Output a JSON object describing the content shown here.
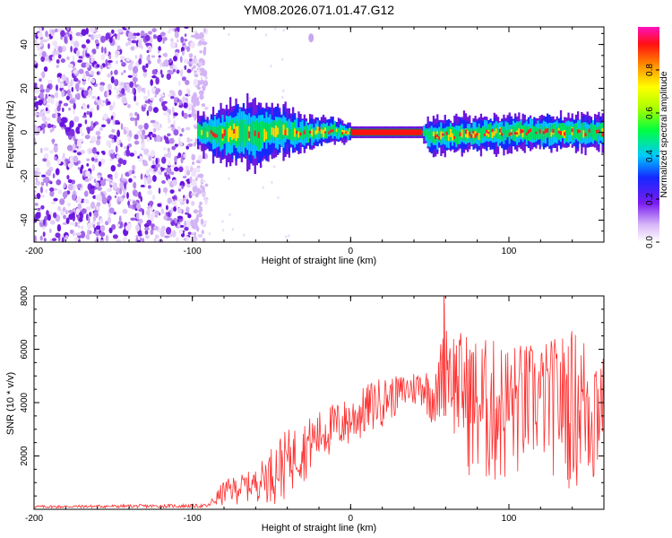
{
  "title": "YM08.2026.071.01.47.G12",
  "chart_data": [
    {
      "type": "heatmap",
      "xlabel": "Height of straight line (km)",
      "ylabel": "Frequency (Hz)",
      "xlim": [
        -200,
        160
      ],
      "ylim": [
        -50,
        48
      ],
      "x_ticks": [
        -200,
        -100,
        0,
        100
      ],
      "x_tick_labels": [
        "-200",
        "-100",
        "0",
        "100"
      ],
      "y_ticks": [
        -40,
        -20,
        0,
        20,
        40
      ],
      "y_tick_labels": [
        "-40",
        "-20",
        "0",
        "20",
        "40"
      ],
      "noise_region_x": [
        -200,
        -97
      ],
      "signal_band": [
        {
          "x": -97,
          "center": 0,
          "width": 5
        },
        {
          "x": -80,
          "center": -1,
          "width": 8
        },
        {
          "x": -70,
          "center": 0,
          "width": 10
        },
        {
          "x": -60,
          "center": -1,
          "width": 9
        },
        {
          "x": -45,
          "center": 1,
          "width": 7
        },
        {
          "x": -30,
          "center": -1,
          "width": 5
        },
        {
          "x": -15,
          "center": 1,
          "width": 4
        },
        {
          "x": 0,
          "center": 0,
          "width": 2
        },
        {
          "x": 45,
          "center": 0,
          "width": 2
        },
        {
          "x": 50,
          "center": -2,
          "width": 5
        },
        {
          "x": 70,
          "center": -1,
          "width": 5
        },
        {
          "x": 100,
          "center": 0,
          "width": 5
        },
        {
          "x": 130,
          "center": 0,
          "width": 5
        },
        {
          "x": 160,
          "center": 0,
          "width": 5
        }
      ],
      "colorbar": {
        "label": "Normalized spectral amplitude",
        "range": [
          0,
          1
        ],
        "ticks": [
          0.0,
          0.2,
          0.4,
          0.6,
          0.8
        ],
        "tick_labels": [
          "0.0",
          "0.2",
          "0.4",
          "0.6",
          "0.8"
        ],
        "colormap": "rainbow (white-violet-blue-cyan-green-yellow-red-magenta)"
      }
    },
    {
      "type": "line",
      "xlabel": "Height of straight line (km)",
      "ylabel": "SNR (10 * v/v)",
      "xlim": [
        -200,
        160
      ],
      "ylim": [
        0,
        8000
      ],
      "x_ticks": [
        -200,
        -100,
        0,
        100
      ],
      "x_tick_labels": [
        "-200",
        "-100",
        "0",
        "100"
      ],
      "y_ticks": [
        2000,
        4000,
        6000,
        8000
      ],
      "y_tick_labels": [
        "2000",
        "4000",
        "6000",
        "8000"
      ],
      "series": [
        {
          "name": "SNR",
          "color": "#ff3030",
          "envelope": [
            {
              "x": -200,
              "low": 0,
              "high": 150
            },
            {
              "x": -90,
              "low": 0,
              "high": 200
            },
            {
              "x": -80,
              "low": 100,
              "high": 1100
            },
            {
              "x": -60,
              "low": 300,
              "high": 1500
            },
            {
              "x": -45,
              "low": 100,
              "high": 2800
            },
            {
              "x": -30,
              "low": 1000,
              "high": 3300
            },
            {
              "x": -15,
              "low": 1800,
              "high": 3900
            },
            {
              "x": 0,
              "low": 2200,
              "high": 4200
            },
            {
              "x": 15,
              "low": 2800,
              "high": 4900
            },
            {
              "x": 30,
              "low": 3500,
              "high": 5000
            },
            {
              "x": 45,
              "low": 3800,
              "high": 5300
            },
            {
              "x": 55,
              "low": 2700,
              "high": 5200
            },
            {
              "x": 59,
              "low": 3500,
              "high": 8000
            },
            {
              "x": 65,
              "low": 2500,
              "high": 6800
            },
            {
              "x": 80,
              "low": 400,
              "high": 6500
            },
            {
              "x": 100,
              "low": 600,
              "high": 6300
            },
            {
              "x": 120,
              "low": 1500,
              "high": 6200
            },
            {
              "x": 140,
              "low": 500,
              "high": 6800
            },
            {
              "x": 155,
              "low": 100,
              "high": 6600
            },
            {
              "x": 160,
              "low": 2500,
              "high": 5700
            }
          ]
        }
      ]
    }
  ]
}
